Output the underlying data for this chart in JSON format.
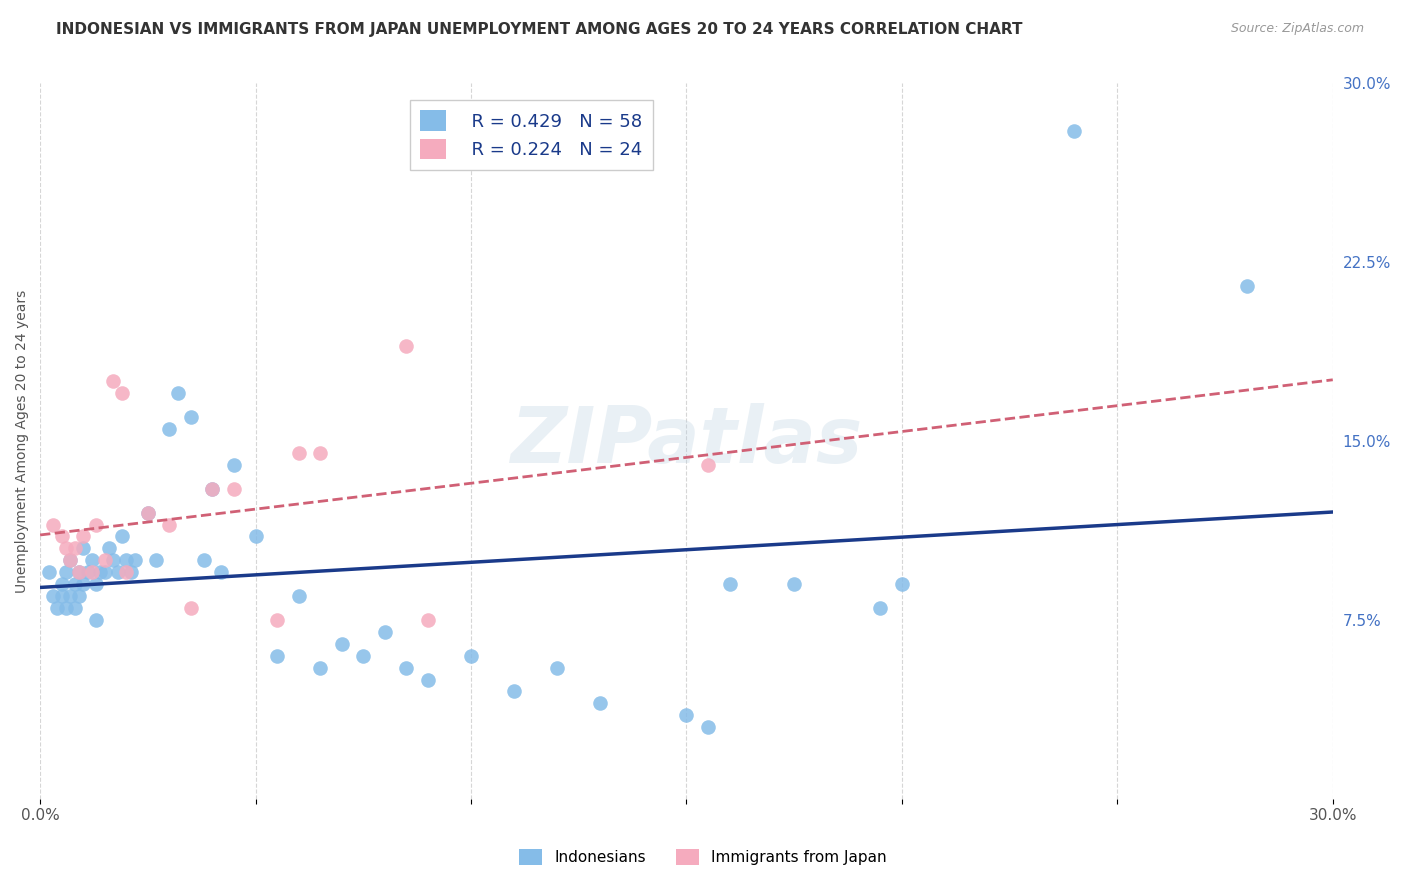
{
  "title": "INDONESIAN VS IMMIGRANTS FROM JAPAN UNEMPLOYMENT AMONG AGES 20 TO 24 YEARS CORRELATION CHART",
  "source": "Source: ZipAtlas.com",
  "ylabel": "Unemployment Among Ages 20 to 24 years",
  "xlim": [
    0.0,
    0.3
  ],
  "ylim": [
    0.0,
    0.3
  ],
  "xticks": [
    0.0,
    0.05,
    0.1,
    0.15,
    0.2,
    0.25,
    0.3
  ],
  "xtick_labels": [
    "0.0%",
    "",
    "",
    "",
    "",
    "",
    "30.0%"
  ],
  "yticks_right": [
    0.075,
    0.15,
    0.225,
    0.3
  ],
  "ytick_labels_right": [
    "7.5%",
    "15.0%",
    "22.5%",
    "30.0%"
  ],
  "blue_R": "R = 0.429",
  "blue_N": "N = 58",
  "pink_R": "R = 0.224",
  "pink_N": "N = 24",
  "legend_label_blue": "Indonesians",
  "legend_label_pink": "Immigrants from Japan",
  "blue_color": "#85BCE8",
  "pink_color": "#F5ABBE",
  "line_blue_color": "#1a3a8a",
  "line_pink_color": "#d06075",
  "watermark": "ZIPatlas",
  "indonesian_x": [
    0.002,
    0.003,
    0.004,
    0.005,
    0.005,
    0.006,
    0.006,
    0.007,
    0.007,
    0.008,
    0.008,
    0.009,
    0.009,
    0.01,
    0.01,
    0.011,
    0.012,
    0.013,
    0.013,
    0.014,
    0.015,
    0.016,
    0.017,
    0.018,
    0.019,
    0.02,
    0.021,
    0.022,
    0.025,
    0.027,
    0.03,
    0.032,
    0.035,
    0.038,
    0.04,
    0.042,
    0.045,
    0.05,
    0.055,
    0.06,
    0.065,
    0.07,
    0.075,
    0.08,
    0.085,
    0.09,
    0.1,
    0.11,
    0.12,
    0.13,
    0.15,
    0.155,
    0.16,
    0.175,
    0.195,
    0.2,
    0.24,
    0.28
  ],
  "indonesian_y": [
    0.095,
    0.085,
    0.08,
    0.09,
    0.085,
    0.095,
    0.08,
    0.1,
    0.085,
    0.09,
    0.08,
    0.095,
    0.085,
    0.105,
    0.09,
    0.095,
    0.1,
    0.09,
    0.075,
    0.095,
    0.095,
    0.105,
    0.1,
    0.095,
    0.11,
    0.1,
    0.095,
    0.1,
    0.12,
    0.1,
    0.155,
    0.17,
    0.16,
    0.1,
    0.13,
    0.095,
    0.14,
    0.11,
    0.06,
    0.085,
    0.055,
    0.065,
    0.06,
    0.07,
    0.055,
    0.05,
    0.06,
    0.045,
    0.055,
    0.04,
    0.035,
    0.03,
    0.09,
    0.09,
    0.08,
    0.09,
    0.28,
    0.215
  ],
  "japan_x": [
    0.003,
    0.005,
    0.006,
    0.007,
    0.008,
    0.009,
    0.01,
    0.012,
    0.013,
    0.015,
    0.017,
    0.019,
    0.02,
    0.025,
    0.03,
    0.035,
    0.04,
    0.045,
    0.055,
    0.06,
    0.065,
    0.085,
    0.09,
    0.155
  ],
  "japan_y": [
    0.115,
    0.11,
    0.105,
    0.1,
    0.105,
    0.095,
    0.11,
    0.095,
    0.115,
    0.1,
    0.175,
    0.17,
    0.095,
    0.12,
    0.115,
    0.08,
    0.13,
    0.13,
    0.075,
    0.145,
    0.145,
    0.19,
    0.075,
    0.14
  ],
  "grid_color": "#cccccc",
  "grid_linestyle": "--",
  "title_fontsize": 11,
  "axis_label_fontsize": 10,
  "tick_fontsize": 11,
  "right_tick_color": "#4472c4",
  "bottom_tick_color": "#555555"
}
